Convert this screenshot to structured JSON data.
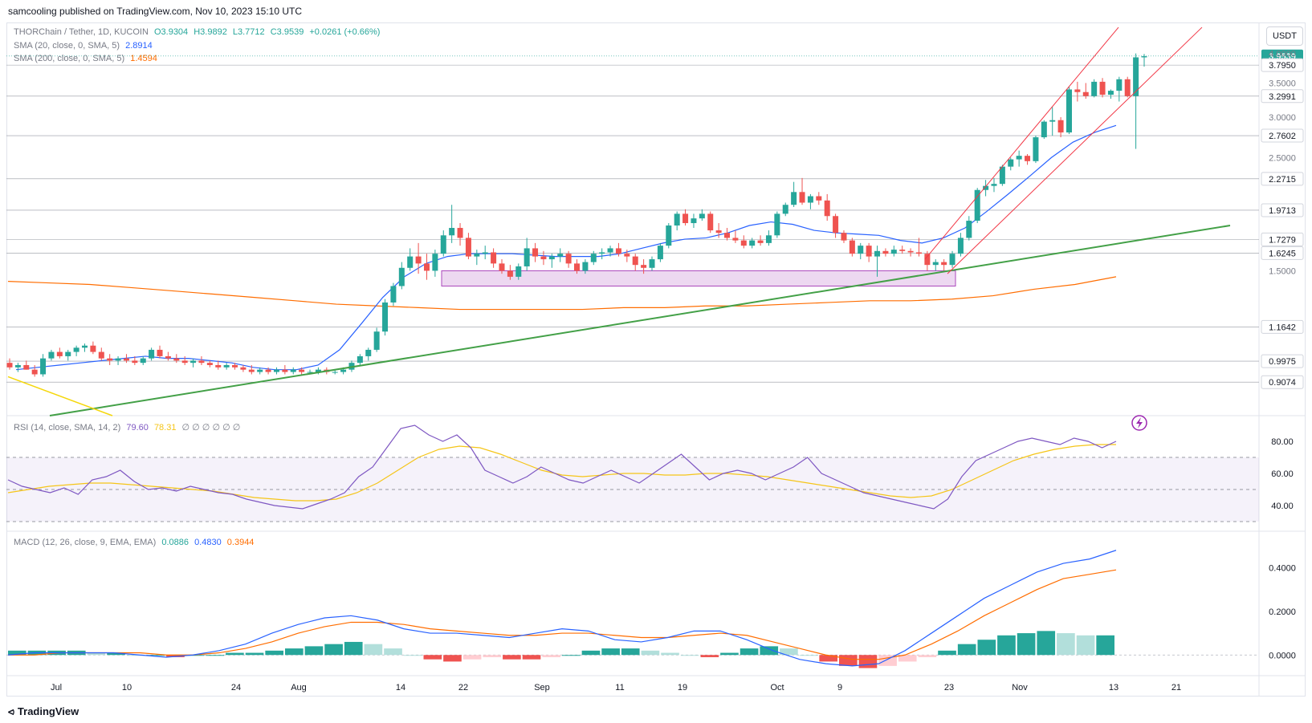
{
  "header": {
    "published": "samcooling published on TradingView.com, Nov 10, 2023 15:10 UTC"
  },
  "currency_button": "USDT",
  "footer": {
    "brand": "TradingView"
  },
  "legend": {
    "symbol": "THORChain / Tether, 1D, KUCOIN",
    "ohlc": {
      "o": "O3.9304",
      "h": "H3.9892",
      "l": "L3.7712",
      "c": "C3.9539",
      "chg": "+0.0261 (+0.66%)"
    },
    "sma20": {
      "label": "SMA (20, close, 0, SMA, 5)",
      "value": "2.8914"
    },
    "sma200": {
      "label": "SMA (200, close, 0, SMA, 5)",
      "value": "1.4594"
    },
    "rsi": {
      "label": "RSI (14, close, SMA, 14, 2)",
      "v1": "79.60",
      "v2": "78.31",
      "extra": "∅ ∅ ∅ ∅ ∅ ∅"
    },
    "macd": {
      "label": "MACD (12, 26, close, 9, EMA, EMA)",
      "hist": "0.0886",
      "macd": "0.4830",
      "signal": "0.3944"
    }
  },
  "chart_data": [
    {
      "type": "candlestick",
      "title": "THORChain / Tether, 1D, KUCOIN",
      "x_tick_labels": [
        "Jul",
        "10",
        "24",
        "Aug",
        "14",
        "22",
        "Sep",
        "11",
        "19",
        "Oct",
        "9",
        "23",
        "Nov",
        "13",
        "21"
      ],
      "y_ticks": [
        "4.0000",
        "3.5000",
        "3.0000",
        "2.5000",
        "1.5000"
      ],
      "price_labels": [
        {
          "value": "3.9539",
          "kind": "last"
        },
        {
          "value": "3.7950"
        },
        {
          "value": "3.2991"
        },
        {
          "value": "2.7602"
        },
        {
          "value": "2.2715"
        },
        {
          "value": "1.9713"
        },
        {
          "value": "1.7279"
        },
        {
          "value": "1.6245"
        },
        {
          "value": "1.1642"
        },
        {
          "value": "0.9975"
        },
        {
          "value": "0.9074"
        }
      ],
      "candles_ohlc": [
        [
          0.99,
          1.01,
          0.96,
          0.97
        ],
        [
          0.97,
          0.99,
          0.95,
          0.98
        ],
        [
          0.98,
          1.0,
          0.96,
          0.96
        ],
        [
          0.96,
          0.98,
          0.93,
          0.94
        ],
        [
          0.94,
          1.03,
          0.93,
          1.01
        ],
        [
          1.01,
          1.05,
          1.0,
          1.04
        ],
        [
          1.04,
          1.06,
          1.01,
          1.02
        ],
        [
          1.02,
          1.05,
          1.0,
          1.04
        ],
        [
          1.04,
          1.07,
          1.02,
          1.06
        ],
        [
          1.06,
          1.08,
          1.04,
          1.07
        ],
        [
          1.07,
          1.09,
          1.03,
          1.04
        ],
        [
          1.04,
          1.06,
          1.0,
          1.01
        ],
        [
          1.01,
          1.03,
          0.98,
          1.0
        ],
        [
          1.0,
          1.02,
          0.98,
          1.01
        ],
        [
          1.01,
          1.03,
          0.99,
          1.0
        ],
        [
          1.0,
          1.02,
          0.98,
          0.99
        ],
        [
          0.99,
          1.02,
          0.98,
          1.01
        ],
        [
          1.01,
          1.06,
          1.0,
          1.05
        ],
        [
          1.05,
          1.07,
          1.01,
          1.02
        ],
        [
          1.02,
          1.04,
          1.0,
          1.01
        ],
        [
          1.01,
          1.03,
          0.99,
          1.0
        ],
        [
          1.0,
          1.02,
          0.98,
          0.99
        ],
        [
          0.99,
          1.01,
          0.97,
          1.0
        ],
        [
          1.0,
          1.02,
          0.98,
          0.99
        ],
        [
          0.99,
          1.0,
          0.97,
          0.98
        ],
        [
          0.98,
          1.0,
          0.96,
          0.97
        ],
        [
          0.97,
          0.99,
          0.96,
          0.98
        ],
        [
          0.98,
          0.99,
          0.96,
          0.97
        ],
        [
          0.97,
          0.98,
          0.95,
          0.96
        ],
        [
          0.96,
          0.98,
          0.94,
          0.95
        ],
        [
          0.95,
          0.97,
          0.94,
          0.96
        ],
        [
          0.96,
          0.97,
          0.94,
          0.95
        ],
        [
          0.95,
          0.97,
          0.94,
          0.96
        ],
        [
          0.96,
          0.98,
          0.94,
          0.95
        ],
        [
          0.95,
          0.97,
          0.94,
          0.96
        ],
        [
          0.96,
          0.97,
          0.94,
          0.95
        ],
        [
          0.95,
          0.96,
          0.94,
          0.95
        ],
        [
          0.95,
          0.97,
          0.94,
          0.96
        ],
        [
          0.96,
          0.97,
          0.94,
          0.95
        ],
        [
          0.95,
          0.96,
          0.94,
          0.95
        ],
        [
          0.95,
          0.97,
          0.94,
          0.96
        ],
        [
          0.96,
          1.0,
          0.95,
          0.99
        ],
        [
          0.99,
          1.03,
          0.98,
          1.02
        ],
        [
          1.02,
          1.06,
          1.0,
          1.05
        ],
        [
          1.05,
          1.16,
          1.04,
          1.14
        ],
        [
          1.14,
          1.32,
          1.12,
          1.3
        ],
        [
          1.3,
          1.42,
          1.28,
          1.4
        ],
        [
          1.4,
          1.56,
          1.38,
          1.52
        ],
        [
          1.52,
          1.66,
          1.5,
          1.6
        ],
        [
          1.6,
          1.7,
          1.48,
          1.55
        ],
        [
          1.55,
          1.62,
          1.44,
          1.5
        ],
        [
          1.5,
          1.65,
          1.46,
          1.62
        ],
        [
          1.62,
          1.8,
          1.6,
          1.76
        ],
        [
          1.76,
          2.02,
          1.7,
          1.82
        ],
        [
          1.82,
          1.86,
          1.68,
          1.74
        ],
        [
          1.74,
          1.78,
          1.58,
          1.6
        ],
        [
          1.6,
          1.65,
          1.54,
          1.62
        ],
        [
          1.62,
          1.68,
          1.58,
          1.63
        ],
        [
          1.63,
          1.66,
          1.52,
          1.55
        ],
        [
          1.55,
          1.58,
          1.48,
          1.5
        ],
        [
          1.5,
          1.54,
          1.44,
          1.46
        ],
        [
          1.46,
          1.55,
          1.44,
          1.53
        ],
        [
          1.53,
          1.74,
          1.5,
          1.66
        ],
        [
          1.66,
          1.7,
          1.56,
          1.6
        ],
        [
          1.6,
          1.64,
          1.54,
          1.58
        ],
        [
          1.58,
          1.62,
          1.52,
          1.6
        ],
        [
          1.6,
          1.66,
          1.56,
          1.62
        ],
        [
          1.62,
          1.64,
          1.52,
          1.55
        ],
        [
          1.55,
          1.58,
          1.48,
          1.5
        ],
        [
          1.5,
          1.58,
          1.48,
          1.56
        ],
        [
          1.56,
          1.64,
          1.54,
          1.62
        ],
        [
          1.62,
          1.66,
          1.58,
          1.63
        ],
        [
          1.63,
          1.68,
          1.6,
          1.66
        ],
        [
          1.66,
          1.7,
          1.6,
          1.62
        ],
        [
          1.62,
          1.65,
          1.56,
          1.6
        ],
        [
          1.6,
          1.62,
          1.5,
          1.54
        ],
        [
          1.54,
          1.58,
          1.48,
          1.52
        ],
        [
          1.52,
          1.6,
          1.5,
          1.58
        ],
        [
          1.58,
          1.7,
          1.56,
          1.68
        ],
        [
          1.68,
          1.86,
          1.66,
          1.84
        ],
        [
          1.84,
          1.96,
          1.8,
          1.94
        ],
        [
          1.94,
          1.98,
          1.84,
          1.86
        ],
        [
          1.86,
          1.94,
          1.82,
          1.9
        ],
        [
          1.9,
          1.98,
          1.88,
          1.94
        ],
        [
          1.94,
          1.96,
          1.78,
          1.8
        ],
        [
          1.8,
          1.86,
          1.74,
          1.78
        ],
        [
          1.78,
          1.82,
          1.72,
          1.74
        ],
        [
          1.74,
          1.8,
          1.7,
          1.72
        ],
        [
          1.72,
          1.76,
          1.66,
          1.68
        ],
        [
          1.68,
          1.74,
          1.66,
          1.72
        ],
        [
          1.72,
          1.76,
          1.68,
          1.7
        ],
        [
          1.7,
          1.8,
          1.68,
          1.76
        ],
        [
          1.76,
          1.96,
          1.74,
          1.94
        ],
        [
          1.94,
          2.04,
          1.92,
          2.02
        ],
        [
          2.02,
          2.24,
          2.0,
          2.14
        ],
        [
          2.14,
          2.28,
          2.02,
          2.04
        ],
        [
          2.04,
          2.12,
          1.98,
          2.1
        ],
        [
          2.1,
          2.14,
          2.02,
          2.06
        ],
        [
          2.06,
          2.12,
          1.88,
          1.92
        ],
        [
          1.92,
          1.94,
          1.74,
          1.78
        ],
        [
          1.78,
          1.8,
          1.7,
          1.72
        ],
        [
          1.72,
          1.74,
          1.6,
          1.62
        ],
        [
          1.62,
          1.7,
          1.58,
          1.68
        ],
        [
          1.68,
          1.7,
          1.56,
          1.6
        ],
        [
          1.6,
          1.68,
          1.46,
          1.64
        ],
        [
          1.64,
          1.66,
          1.6,
          1.62
        ],
        [
          1.62,
          1.68,
          1.6,
          1.65
        ],
        [
          1.65,
          1.68,
          1.62,
          1.64
        ],
        [
          1.64,
          1.66,
          1.6,
          1.63
        ],
        [
          1.63,
          1.74,
          1.6,
          1.62
        ],
        [
          1.62,
          1.64,
          1.5,
          1.54
        ],
        [
          1.54,
          1.58,
          1.5,
          1.56
        ],
        [
          1.56,
          1.58,
          1.5,
          1.54
        ],
        [
          1.54,
          1.64,
          1.52,
          1.62
        ],
        [
          1.62,
          1.78,
          1.6,
          1.74
        ],
        [
          1.74,
          1.92,
          1.72,
          1.88
        ],
        [
          1.88,
          2.18,
          1.86,
          2.16
        ],
        [
          2.16,
          2.26,
          2.1,
          2.2
        ],
        [
          2.2,
          2.28,
          2.14,
          2.22
        ],
        [
          2.22,
          2.42,
          2.2,
          2.4
        ],
        [
          2.4,
          2.5,
          2.36,
          2.48
        ],
        [
          2.48,
          2.58,
          2.4,
          2.52
        ],
        [
          2.52,
          2.54,
          2.42,
          2.46
        ],
        [
          2.46,
          2.76,
          2.44,
          2.74
        ],
        [
          2.74,
          2.96,
          2.72,
          2.94
        ],
        [
          2.94,
          3.14,
          2.76,
          2.96
        ],
        [
          2.96,
          3.0,
          2.74,
          2.8
        ],
        [
          2.8,
          3.44,
          2.78,
          3.4
        ],
        [
          3.4,
          3.52,
          3.22,
          3.36
        ],
        [
          3.36,
          3.5,
          3.26,
          3.3
        ],
        [
          3.3,
          3.56,
          3.28,
          3.52
        ],
        [
          3.52,
          3.58,
          3.28,
          3.32
        ],
        [
          3.32,
          3.4,
          3.26,
          3.38
        ],
        [
          3.38,
          3.6,
          3.22,
          3.56
        ],
        [
          3.56,
          3.6,
          3.28,
          3.3
        ],
        [
          3.3,
          4.0,
          2.6,
          3.93
        ],
        [
          3.93,
          3.99,
          3.77,
          3.95
        ]
      ],
      "sma20": [
        0.96,
        0.97,
        0.98,
        0.99,
        1.0,
        1.01,
        1.02,
        1.01,
        1.01,
        1.0,
        0.99,
        0.97,
        0.96,
        0.96,
        0.98,
        1.05,
        1.18,
        1.33,
        1.46,
        1.55,
        1.6,
        1.62,
        1.62,
        1.62,
        1.61,
        1.6,
        1.6,
        1.6,
        1.62,
        1.66,
        1.7,
        1.73,
        1.74,
        1.78,
        1.84,
        1.87,
        1.85,
        1.8,
        1.78,
        1.77,
        1.76,
        1.72,
        1.7,
        1.74,
        1.82,
        1.96,
        2.12,
        2.3,
        2.5,
        2.68,
        2.8,
        2.89
      ],
      "sma200": [
        1.43,
        1.42,
        1.41,
        1.39,
        1.37,
        1.35,
        1.33,
        1.31,
        1.29,
        1.28,
        1.27,
        1.26,
        1.26,
        1.26,
        1.26,
        1.27,
        1.27,
        1.28,
        1.28,
        1.29,
        1.3,
        1.31,
        1.31,
        1.32,
        1.34,
        1.38,
        1.41,
        1.46
      ],
      "support_zone": {
        "from": 1.4,
        "to": 1.5
      },
      "trendlines": [
        "green rising support",
        "red ascending channel",
        "yellow descending"
      ]
    },
    {
      "type": "line",
      "title": "RSI (14, close, SMA, 14, 2)",
      "y_ticks": [
        "80.00",
        "60.00",
        "40.00"
      ],
      "bands": [
        70,
        50,
        30
      ],
      "rsi": [
        56,
        52,
        50,
        48,
        51,
        47,
        56,
        58,
        62,
        55,
        50,
        51,
        49,
        52,
        50,
        48,
        47,
        44,
        42,
        40,
        39,
        38,
        41,
        44,
        48,
        58,
        64,
        76,
        88,
        90,
        84,
        80,
        84,
        76,
        62,
        58,
        54,
        58,
        64,
        60,
        56,
        54,
        58,
        62,
        58,
        54,
        60,
        66,
        72,
        64,
        56,
        60,
        62,
        60,
        56,
        60,
        64,
        70,
        60,
        56,
        52,
        48,
        46,
        44,
        42,
        40,
        38,
        44,
        58,
        68,
        72,
        76,
        80,
        82,
        80,
        78,
        82,
        80,
        76,
        80
      ],
      "rsi_ma": [
        48,
        50,
        52,
        53,
        54,
        54,
        53,
        52,
        51,
        50,
        49,
        47,
        45,
        44,
        43,
        43,
        44,
        48,
        54,
        62,
        70,
        75,
        77,
        76,
        72,
        67,
        62,
        59,
        58,
        59,
        60,
        60,
        59,
        59,
        60,
        60,
        59,
        58,
        56,
        54,
        52,
        50,
        48,
        46,
        45,
        46,
        50,
        56,
        62,
        68,
        72,
        75,
        77,
        78,
        78
      ]
    },
    {
      "type": "bar",
      "title": "MACD (12, 26, close, 9, EMA, EMA)",
      "y_ticks": [
        "0.4000",
        "0.2000",
        "0.0000"
      ],
      "histogram": [
        0.02,
        0.02,
        0.02,
        0.02,
        0.01,
        0.01,
        0.0,
        0.0,
        -0.01,
        0.0,
        0.0,
        0.01,
        0.01,
        0.02,
        0.03,
        0.04,
        0.05,
        0.06,
        0.05,
        0.03,
        0.0,
        -0.02,
        -0.03,
        -0.02,
        -0.01,
        -0.02,
        -0.02,
        -0.01,
        0.0,
        0.02,
        0.03,
        0.03,
        0.02,
        0.01,
        0.0,
        -0.01,
        0.01,
        0.03,
        0.04,
        0.03,
        0.0,
        -0.03,
        -0.05,
        -0.06,
        -0.05,
        -0.03,
        -0.01,
        0.02,
        0.05,
        0.07,
        0.09,
        0.1,
        0.11,
        0.1,
        0.09,
        0.09
      ],
      "macd_line": [
        0.0,
        0.01,
        0.01,
        0.01,
        0.01,
        0.0,
        -0.01,
        0.0,
        0.02,
        0.05,
        0.1,
        0.14,
        0.17,
        0.18,
        0.16,
        0.12,
        0.1,
        0.1,
        0.09,
        0.08,
        0.1,
        0.12,
        0.11,
        0.07,
        0.06,
        0.08,
        0.11,
        0.11,
        0.07,
        0.02,
        -0.02,
        -0.04,
        -0.05,
        -0.04,
        0.02,
        0.1,
        0.18,
        0.26,
        0.32,
        0.38,
        0.42,
        0.44,
        0.48
      ],
      "signal_line": [
        0.0,
        0.0,
        0.01,
        0.01,
        0.01,
        0.01,
        0.0,
        0.0,
        0.01,
        0.03,
        0.06,
        0.1,
        0.13,
        0.15,
        0.15,
        0.14,
        0.12,
        0.11,
        0.1,
        0.09,
        0.09,
        0.1,
        0.1,
        0.09,
        0.08,
        0.08,
        0.09,
        0.1,
        0.09,
        0.06,
        0.03,
        0.0,
        -0.02,
        -0.02,
        0.0,
        0.05,
        0.11,
        0.18,
        0.24,
        0.3,
        0.35,
        0.37,
        0.39
      ],
      "colors": {
        "up": "#26a69a",
        "down": "#ef5350",
        "macd": "#2962ff",
        "signal": "#ff6d00"
      }
    }
  ]
}
